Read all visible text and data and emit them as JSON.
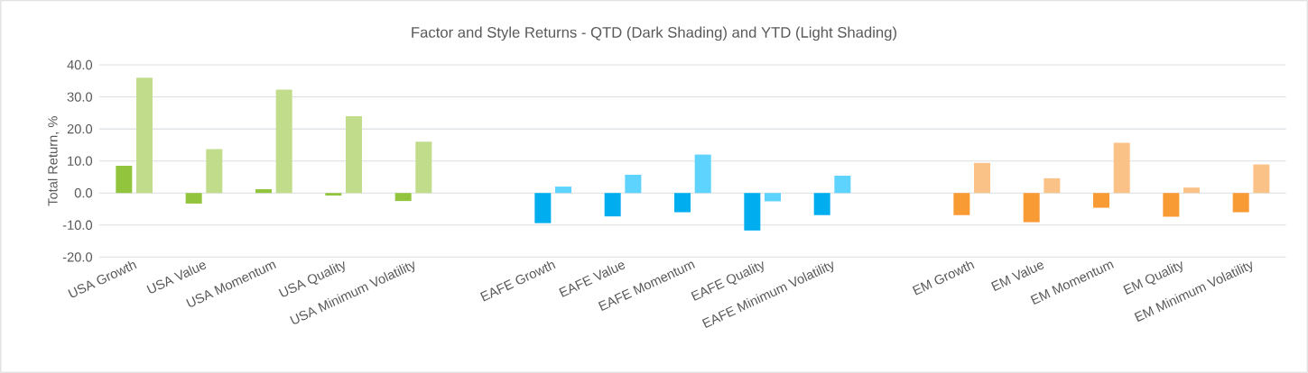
{
  "chart_data": {
    "type": "bar",
    "title": "Factor and Style Returns - QTD (Dark Shading) and YTD (Light Shading)",
    "ylabel": "Total Return, %",
    "categories": [
      "USA Growth",
      "USA Value",
      "USA Momentum",
      "USA Quality",
      "USA Minimum Volatility",
      null,
      "EAFE Growth",
      "EAFE Value",
      "EAFE Momentum",
      "EAFE Quality",
      "EAFE Minimum Volatility",
      null,
      "EM Growth",
      "EM Value",
      "EM Momentum",
      "EM Quality",
      "EM Minimum Volatility"
    ],
    "series": [
      {
        "values": [
          8.5,
          -3.3,
          1.2,
          -0.8,
          -2.5,
          null,
          -9.4,
          -7.3,
          -6.0,
          -11.7,
          -6.9,
          null,
          -6.9,
          -9.1,
          -4.6,
          -7.4,
          -6.0
        ],
        "colors": [
          "#92c43d",
          "#92c43d",
          "#92c43d",
          "#92c43d",
          "#92c43d",
          null,
          "#00aeef",
          "#00aeef",
          "#00aeef",
          "#00aeef",
          "#00aeef",
          null,
          "#f99b35",
          "#f99b35",
          "#f99b35",
          "#f99b35",
          "#f99b35"
        ]
      },
      {
        "values": [
          36.0,
          13.7,
          32.3,
          24.0,
          16.0,
          null,
          2.0,
          5.7,
          12.0,
          -2.6,
          5.4,
          null,
          9.4,
          4.6,
          15.7,
          1.7,
          8.9
        ],
        "colors": [
          "#c1dd8b",
          "#c1dd8b",
          "#c1dd8b",
          "#c1dd8b",
          "#c1dd8b",
          null,
          "#5dd3fd",
          "#5dd3fd",
          "#5dd3fd",
          "#5dd3fd",
          "#5dd3fd",
          null,
          "#fbc287",
          "#fbc287",
          "#fbc287",
          "#fbc287",
          "#fbc287"
        ]
      }
    ],
    "ylim": [
      -20,
      40
    ],
    "yticks": [
      {
        "value": -20,
        "label": "-20.0"
      },
      {
        "value": -10,
        "label": "-10.0"
      },
      {
        "value": 0,
        "label": "0.0"
      },
      {
        "value": 10,
        "label": "10.0"
      },
      {
        "value": 20,
        "label": "20.0"
      },
      {
        "value": 30,
        "label": "30.0"
      },
      {
        "value": 40,
        "label": "40.0"
      }
    ],
    "grid": "y"
  }
}
